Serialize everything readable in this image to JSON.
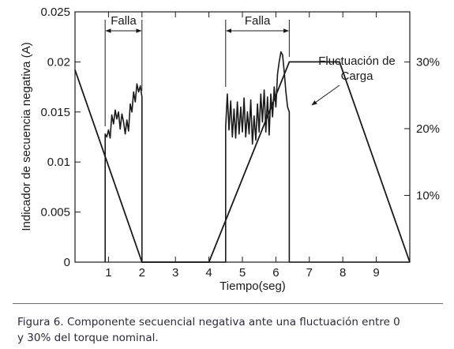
{
  "chart_data": {
    "type": "line",
    "title": "",
    "xlabel": "Tiempo(seg)",
    "ylabel": "Indicador de secuencia negativa (A)",
    "xlim": [
      0,
      10
    ],
    "ylim": [
      0,
      0.025
    ],
    "x_ticks": [
      1,
      2,
      3,
      4,
      5,
      6,
      7,
      8,
      9
    ],
    "y_ticks": [
      0,
      0.005,
      0.01,
      0.015,
      0.02,
      0.025
    ],
    "y_tick_labels": [
      "0",
      "0.005",
      "0.01",
      "0.015",
      "0.02",
      "0.025"
    ],
    "right_axis": {
      "ticks": [
        10,
        20,
        30
      ],
      "tick_labels": [
        "10%",
        "20%",
        "30%"
      ],
      "lim": [
        0,
        37.5
      ]
    },
    "grid": false,
    "series": [
      {
        "axis": "left",
        "x": [
          0.9,
          0.9,
          0.95,
          1.0,
          1.05,
          1.1,
          1.15,
          1.2,
          1.25,
          1.3,
          1.35,
          1.4,
          1.45,
          1.5,
          1.55,
          1.6,
          1.65,
          1.7,
          1.75,
          1.8,
          1.85,
          1.9,
          1.95,
          2.0,
          2.0,
          4.5,
          4.5,
          4.55,
          4.6,
          4.65,
          4.7,
          4.75,
          4.8,
          4.85,
          4.9,
          4.95,
          5.0,
          5.05,
          5.1,
          5.15,
          5.2,
          5.25,
          5.3,
          5.35,
          5.4,
          5.45,
          5.5,
          5.55,
          5.6,
          5.65,
          5.7,
          5.75,
          5.8,
          5.85,
          5.9,
          5.95,
          6.0,
          6.05,
          6.1,
          6.15,
          6.2,
          6.25,
          6.3,
          6.35,
          6.4,
          6.4,
          10.0
        ],
        "y": [
          0,
          0.0128,
          0.0125,
          0.0132,
          0.0124,
          0.0147,
          0.0138,
          0.0152,
          0.0143,
          0.015,
          0.0133,
          0.0148,
          0.014,
          0.0128,
          0.0142,
          0.0131,
          0.0158,
          0.015,
          0.017,
          0.016,
          0.0178,
          0.017,
          0.0176,
          0.0165,
          0,
          0,
          0.0135,
          0.0168,
          0.0132,
          0.0161,
          0.0125,
          0.0153,
          0.0124,
          0.016,
          0.0128,
          0.0155,
          0.013,
          0.0164,
          0.0125,
          0.015,
          0.0128,
          0.0162,
          0.0118,
          0.0146,
          0.0122,
          0.0158,
          0.013,
          0.0168,
          0.014,
          0.0172,
          0.013,
          0.0165,
          0.0127,
          0.0168,
          0.0145,
          0.0175,
          0.0155,
          0.0188,
          0.02,
          0.021,
          0.0207,
          0.019,
          0.017,
          0.0155,
          0.015,
          0,
          0
        ]
      },
      {
        "axis": "right",
        "x": [
          0,
          2.0,
          4.0,
          6.4,
          7.9,
          10.0
        ],
        "y": [
          28.8,
          0,
          0,
          30,
          30,
          0
        ]
      }
    ],
    "annotations": [
      {
        "text": "Falla",
        "x_start": 0.9,
        "x_end": 2.0
      },
      {
        "text": "Falla",
        "x_start": 4.5,
        "x_end": 6.4
      },
      {
        "text_lines": [
          "Fluctuación de",
          "Carga"
        ]
      }
    ]
  },
  "caption": {
    "lines": [
      "Figura 6. Componente secuencial negativa ante una fluctuación entre 0",
      "y 30% del torque nominal."
    ]
  }
}
